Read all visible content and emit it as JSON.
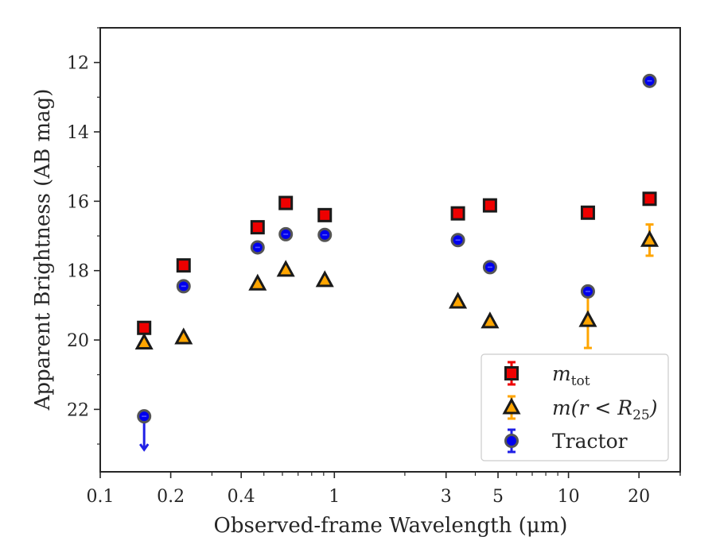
{
  "chart_data": {
    "type": "scatter",
    "title": "",
    "xlabel": "Observed-frame Wavelength (μm)",
    "ylabel": "Apparent Brightness (AB mag)",
    "xscale": "log",
    "xlim": [
      0.1,
      30
    ],
    "ylim": [
      23.8,
      11
    ],
    "y_inverted": true,
    "xticks": [
      0.1,
      0.2,
      0.4,
      1,
      3,
      5,
      10,
      20
    ],
    "xtick_labels": [
      "0.1",
      "0.2",
      "0.4",
      "1",
      "3",
      "5",
      "10",
      "20"
    ],
    "yticks": [
      12,
      14,
      16,
      18,
      20,
      22
    ],
    "ytick_labels": [
      "12",
      "14",
      "16",
      "18",
      "20",
      "22"
    ],
    "grid": false,
    "legend_position": "bottom-right",
    "series": [
      {
        "key": "mtot",
        "marker": "square",
        "color": "#ee0000",
        "errcolor": "#ee0000",
        "points": [
          {
            "x": 0.154,
            "y": 19.65
          },
          {
            "x": 0.227,
            "y": 17.85
          },
          {
            "x": 0.47,
            "y": 16.75
          },
          {
            "x": 0.62,
            "y": 16.05
          },
          {
            "x": 0.91,
            "y": 16.4
          },
          {
            "x": 3.37,
            "y": 16.35
          },
          {
            "x": 4.62,
            "y": 16.12
          },
          {
            "x": 12.1,
            "y": 16.33
          },
          {
            "x": 22.2,
            "y": 15.93
          }
        ]
      },
      {
        "key": "mr25",
        "marker": "triangle",
        "color": "#ffa500",
        "errcolor": "#ffa500",
        "points": [
          {
            "x": 0.154,
            "y": 20.08
          },
          {
            "x": 0.227,
            "y": 19.93
          },
          {
            "x": 0.47,
            "y": 18.38
          },
          {
            "x": 0.62,
            "y": 17.98
          },
          {
            "x": 0.91,
            "y": 18.28
          },
          {
            "x": 3.37,
            "y": 18.9
          },
          {
            "x": 4.62,
            "y": 19.47
          },
          {
            "x": 12.1,
            "y": 19.43,
            "err": 0.8
          },
          {
            "x": 22.2,
            "y": 17.12,
            "err": 0.45
          }
        ]
      },
      {
        "key": "tractor",
        "marker": "circle",
        "color": "#0000ee",
        "errcolor": "#1f1fe6",
        "points": [
          {
            "x": 0.154,
            "y": 22.2,
            "upper_limit": true
          },
          {
            "x": 0.227,
            "y": 18.45
          },
          {
            "x": 0.47,
            "y": 17.33
          },
          {
            "x": 0.62,
            "y": 16.95
          },
          {
            "x": 0.91,
            "y": 16.97
          },
          {
            "x": 3.37,
            "y": 17.12
          },
          {
            "x": 4.62,
            "y": 17.9
          },
          {
            "x": 12.1,
            "y": 18.6
          },
          {
            "x": 22.2,
            "y": 12.53
          }
        ]
      }
    ],
    "legend": [
      {
        "key": "mtot",
        "math": "m",
        "sub": "tot",
        "text": "m_tot"
      },
      {
        "key": "mr25",
        "math": "m(r < R",
        "sub": "25",
        "close": ")",
        "text": "m(r < R_25)"
      },
      {
        "key": "tractor",
        "label": "Tractor"
      }
    ]
  }
}
